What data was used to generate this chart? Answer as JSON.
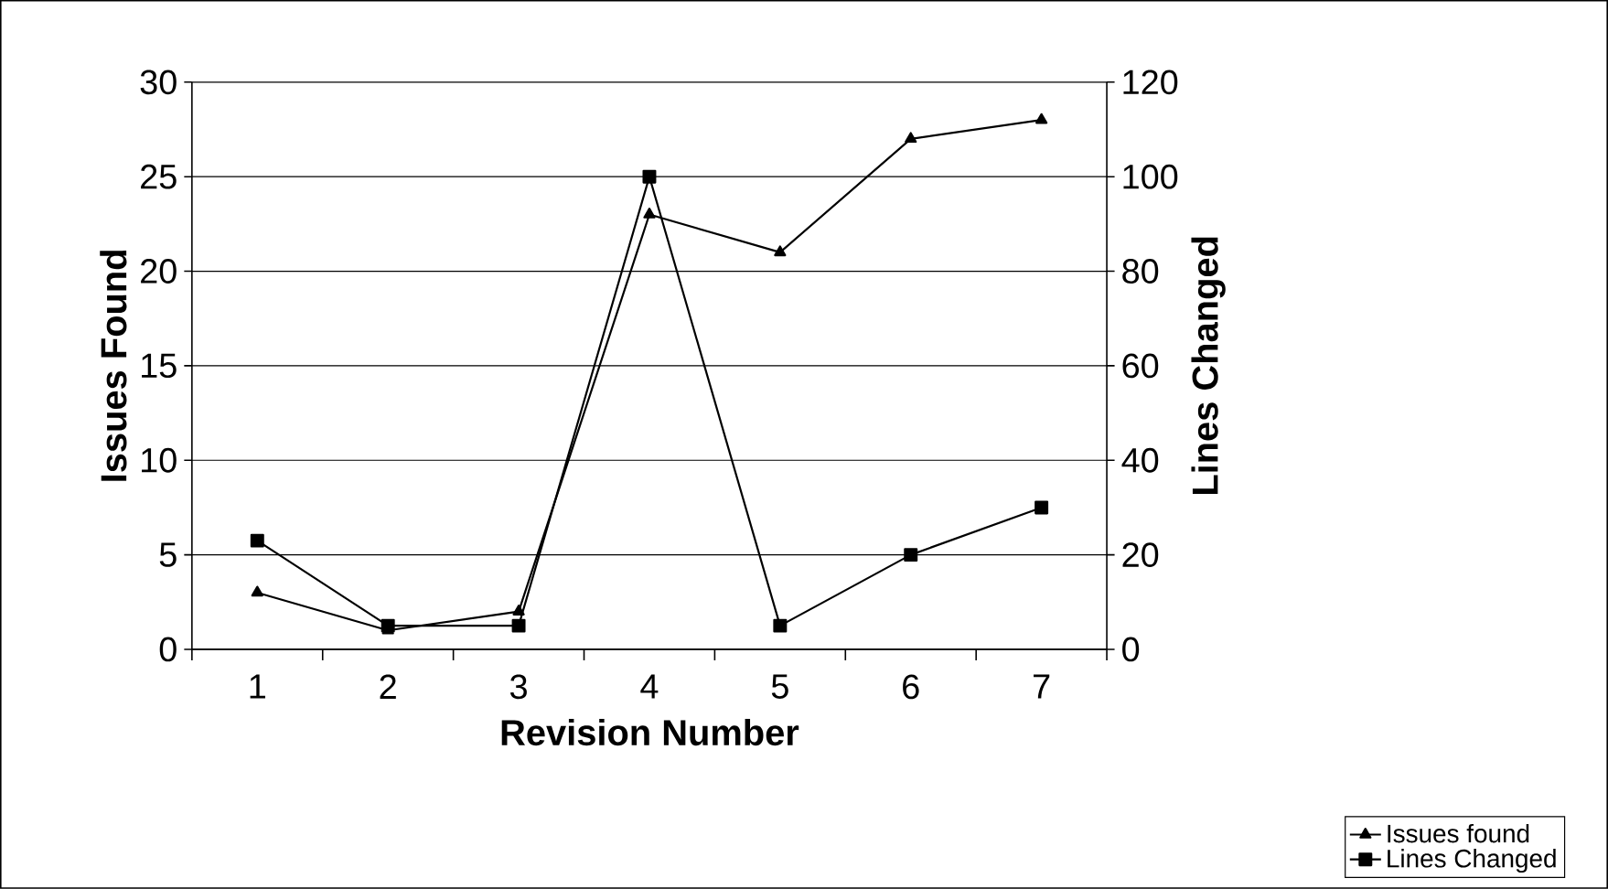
{
  "chart_data": {
    "type": "line",
    "xlabel": "Revision Number",
    "ylabel": "Issues Found",
    "y2label": "Lines Changed",
    "categories": [
      "1",
      "2",
      "3",
      "4",
      "5",
      "6",
      "7"
    ],
    "series": [
      {
        "name": "Issues found",
        "color": "#000000",
        "marker": "triangle",
        "values": [
          3,
          1,
          2,
          23,
          21,
          27,
          28
        ]
      },
      {
        "name": "Lines Changed",
        "color": "#000000",
        "marker": "square",
        "axis": "y2",
        "values": [
          23,
          5,
          5,
          100,
          5,
          20,
          30
        ]
      }
    ],
    "ylim": [
      0,
      30
    ],
    "yticks": [
      0,
      5,
      10,
      15,
      20,
      25,
      30
    ],
    "y2lim": [
      0,
      120
    ],
    "y2ticks": [
      0,
      20,
      40,
      60,
      80,
      100,
      120
    ],
    "grid": "y",
    "legend": "bottom right"
  }
}
